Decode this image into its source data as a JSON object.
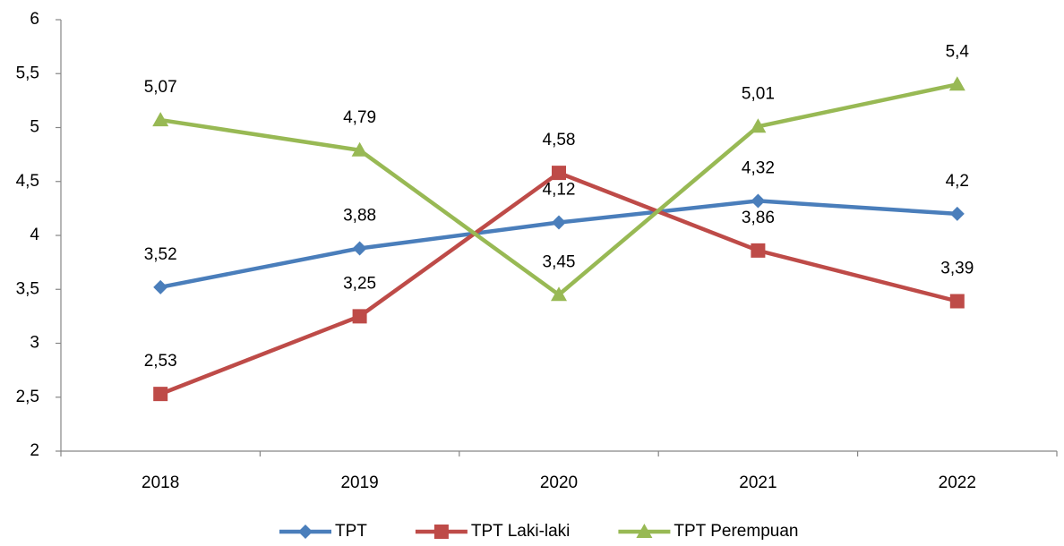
{
  "chart_data": {
    "type": "line",
    "categories": [
      "2018",
      "2019",
      "2020",
      "2021",
      "2022"
    ],
    "series": [
      {
        "name": "TPT",
        "color": "#4a7ebb",
        "marker": "diamond",
        "values": [
          3.52,
          3.88,
          4.12,
          4.32,
          4.2
        ],
        "value_labels": [
          "3,52",
          "3,88",
          "4,12",
          "4,32",
          "4,2"
        ]
      },
      {
        "name": "TPT Laki-laki",
        "color": "#be4b48",
        "marker": "square",
        "values": [
          2.53,
          3.25,
          4.58,
          3.86,
          3.39
        ],
        "value_labels": [
          "2,53",
          "3,25",
          "4,58",
          "3,86",
          "3,39"
        ]
      },
      {
        "name": "TPT Perempuan",
        "color": "#98b954",
        "marker": "triangle",
        "values": [
          5.07,
          4.79,
          3.45,
          5.01,
          5.4
        ],
        "value_labels": [
          "5,07",
          "4,79",
          "3,45",
          "5,01",
          "5,4"
        ]
      }
    ],
    "ylim": [
      2,
      6
    ],
    "yticks": [
      2,
      {
        "value": 2.5,
        "label": "2,5"
      },
      3,
      {
        "value": 3.5,
        "label": "3,5"
      },
      4,
      {
        "value": 4.5,
        "label": "4,5"
      },
      5,
      {
        "value": 5.5,
        "label": "5,5"
      },
      6
    ],
    "grid": false,
    "legend": "bottom"
  }
}
